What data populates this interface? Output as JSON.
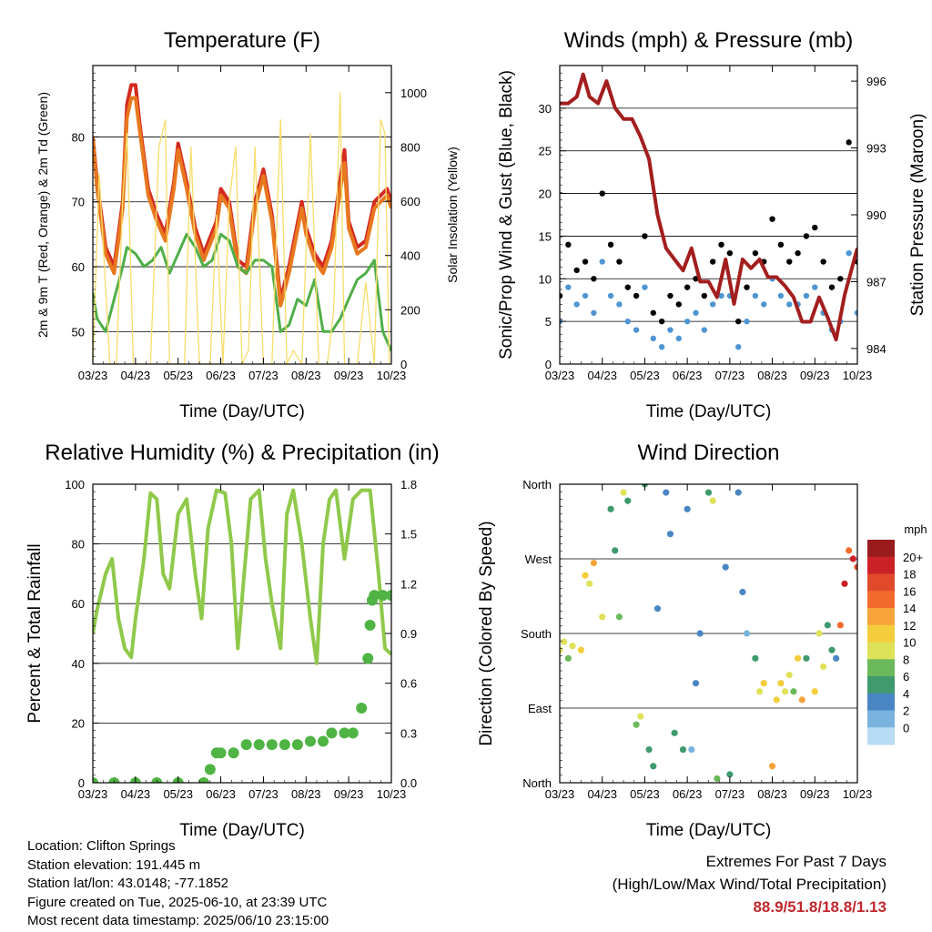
{
  "info": {
    "location": "Location: Clifton Springs",
    "elevation": "Station elevation: 191.445 m",
    "latlon": "Station lat/lon: 43.0148; -77.1852",
    "created": "Figure created on Tue, 2025-06-10, at 23:39 UTC",
    "recent": "Most recent data timestamp: 2025/06/10 23:15:00"
  },
  "extremes": {
    "title": "Extremes For Past 7 Days",
    "subtitle": "(High/Low/Max Wind/Total Precipitation)",
    "values": "88.9/51.8/18.8/1.13"
  },
  "chart_data": [
    {
      "type": "line",
      "title": "Temperature (F)",
      "xlabel": "Time (Day/UTC)",
      "ylabel": "2m & 9m T (Red, Orange) & 2m Td (Green)",
      "y2label": "Solar Insolation (Yellow)",
      "xticks": [
        "03/23",
        "04/23",
        "05/23",
        "06/23",
        "07/23",
        "08/23",
        "09/23",
        "10/23"
      ],
      "xlim": [
        0,
        7
      ],
      "ylim": [
        45,
        91
      ],
      "y2lim": [
        0,
        1100
      ],
      "yticks": [
        50,
        60,
        70,
        80
      ],
      "y2ticks": [
        0,
        200,
        400,
        600,
        800,
        1000
      ],
      "grid": true,
      "series": [
        {
          "color": "#d42a20",
          "x": [
            0,
            0.1,
            0.3,
            0.5,
            0.7,
            0.8,
            0.9,
            1.0,
            1.1,
            1.3,
            1.5,
            1.7,
            1.9,
            2.0,
            2.2,
            2.4,
            2.6,
            2.9,
            3.0,
            3.2,
            3.4,
            3.6,
            3.8,
            4.0,
            4.2,
            4.4,
            4.6,
            4.9,
            5.0,
            5.2,
            5.4,
            5.6,
            5.9,
            6.0,
            6.2,
            6.4,
            6.6,
            6.9,
            7.0
          ],
          "values": [
            80,
            73,
            63,
            60,
            70,
            85,
            88,
            88,
            82,
            72,
            68,
            65,
            73,
            79,
            73,
            66,
            62,
            67,
            72,
            70,
            61,
            60,
            70,
            75,
            68,
            55,
            60,
            70,
            66,
            62,
            60,
            64,
            78,
            67,
            63,
            64,
            70,
            72,
            70
          ]
        },
        {
          "color": "#e8781e",
          "x": [
            0,
            0.1,
            0.3,
            0.5,
            0.7,
            0.8,
            0.9,
            1.0,
            1.1,
            1.3,
            1.5,
            1.7,
            1.9,
            2.0,
            2.2,
            2.4,
            2.6,
            2.9,
            3.0,
            3.2,
            3.4,
            3.6,
            3.8,
            4.0,
            4.2,
            4.4,
            4.6,
            4.9,
            5.0,
            5.2,
            5.4,
            5.6,
            5.9,
            6.0,
            6.2,
            6.4,
            6.6,
            6.9,
            7.0
          ],
          "values": [
            80,
            72,
            62,
            59,
            69,
            83,
            86,
            86,
            81,
            71,
            67,
            64,
            72,
            78,
            72,
            65,
            61,
            66,
            71,
            69,
            60,
            59,
            69,
            74,
            67,
            54,
            59,
            69,
            65,
            61,
            59,
            63,
            76,
            66,
            62,
            63,
            69,
            71,
            69
          ]
        },
        {
          "color": "#4fae48",
          "x": [
            0,
            0.1,
            0.3,
            0.5,
            0.7,
            0.8,
            1.0,
            1.2,
            1.4,
            1.6,
            1.8,
            2.0,
            2.2,
            2.4,
            2.6,
            2.8,
            3.0,
            3.2,
            3.4,
            3.6,
            3.8,
            4.0,
            4.2,
            4.4,
            4.6,
            4.8,
            5.0,
            5.2,
            5.4,
            5.6,
            5.8,
            6.0,
            6.2,
            6.4,
            6.6,
            6.8,
            7.0
          ],
          "values": [
            56,
            52,
            50,
            55,
            60,
            63,
            62,
            60,
            61,
            63,
            59,
            62,
            65,
            63,
            60,
            61,
            65,
            64,
            60,
            59,
            61,
            61,
            60,
            50,
            51,
            55,
            54,
            58,
            50,
            50,
            52,
            55,
            58,
            59,
            61,
            50,
            47
          ]
        },
        {
          "color": "#f7dd6a",
          "x": [
            0,
            0.15,
            0.4,
            0.55,
            0.7,
            0.8,
            0.95,
            1.2,
            1.35,
            1.55,
            1.7,
            1.8,
            2.0,
            2.15,
            2.3,
            2.5,
            2.75,
            2.9,
            3.05,
            3.2,
            3.35,
            3.5,
            3.65,
            3.8,
            4.0,
            4.2,
            4.4,
            4.55,
            4.7,
            4.9,
            5.1,
            5.3,
            5.5,
            5.65,
            5.8,
            5.9,
            6.0,
            6.2,
            6.4,
            6.6,
            6.75,
            6.85,
            6.95,
            7.0
          ],
          "values": [
            0,
            700,
            0,
            0,
            600,
            850,
            0,
            0,
            0,
            800,
            900,
            0,
            0,
            0,
            800,
            0,
            0,
            550,
            0,
            600,
            800,
            0,
            50,
            800,
            0,
            0,
            900,
            0,
            50,
            0,
            850,
            0,
            0,
            200,
            1000,
            0,
            0,
            0,
            300,
            0,
            900,
            850,
            0,
            0
          ],
          "axis": "y2"
        }
      ]
    },
    {
      "type": "line",
      "title": "Winds (mph) & Pressure (mb)",
      "xlabel": "Time (Day/UTC)",
      "ylabel": "Sonic/Prop Wind & Gust (Blue, Black)",
      "y2label": "Station Pressure (Maroon)",
      "xticks": [
        "03/23",
        "04/23",
        "05/23",
        "06/23",
        "07/23",
        "08/23",
        "09/23",
        "10/23"
      ],
      "xlim": [
        0,
        7
      ],
      "ylim": [
        0,
        35
      ],
      "y2lim": [
        983.3,
        996.7
      ],
      "yticks": [
        0,
        5,
        10,
        15,
        20,
        25,
        30
      ],
      "y2ticks": [
        984,
        987,
        990,
        993,
        996
      ],
      "grid": true,
      "series": [
        {
          "color": "#000000",
          "style": "dots",
          "x": [
            0,
            0.2,
            0.4,
            0.6,
            0.8,
            1.0,
            1.2,
            1.4,
            1.6,
            1.8,
            2.0,
            2.2,
            2.4,
            2.6,
            2.8,
            3.0,
            3.2,
            3.4,
            3.6,
            3.8,
            4.0,
            4.2,
            4.4,
            4.6,
            4.8,
            5.0,
            5.2,
            5.4,
            5.6,
            5.8,
            6.0,
            6.2,
            6.4,
            6.6,
            6.8,
            7.0
          ],
          "values": [
            8,
            14,
            11,
            12,
            10,
            20,
            14,
            12,
            9,
            8,
            15,
            6,
            5,
            8,
            7,
            9,
            10,
            8,
            12,
            14,
            13,
            5,
            9,
            13,
            12,
            17,
            14,
            12,
            13,
            15,
            16,
            12,
            9,
            10,
            26,
            12
          ]
        },
        {
          "color": "#4e95d2",
          "style": "dots",
          "x": [
            0,
            0.2,
            0.4,
            0.6,
            0.8,
            1.0,
            1.2,
            1.4,
            1.6,
            1.8,
            2.0,
            2.2,
            2.4,
            2.6,
            2.8,
            3.0,
            3.2,
            3.4,
            3.6,
            3.8,
            4.0,
            4.2,
            4.4,
            4.6,
            4.8,
            5.0,
            5.2,
            5.4,
            5.6,
            5.8,
            6.0,
            6.2,
            6.4,
            6.6,
            6.8,
            7.0
          ],
          "values": [
            5,
            9,
            7,
            8,
            6,
            12,
            8,
            7,
            5,
            4,
            9,
            3,
            2,
            4,
            3,
            5,
            6,
            4,
            7,
            8,
            8,
            2,
            5,
            8,
            7,
            10,
            8,
            7,
            7,
            8,
            9,
            6,
            4,
            5,
            13,
            6
          ]
        },
        {
          "color": "#a31e1e",
          "axis": "y2",
          "x": [
            0,
            0.2,
            0.4,
            0.55,
            0.7,
            0.9,
            1.1,
            1.3,
            1.5,
            1.7,
            1.9,
            2.1,
            2.3,
            2.5,
            2.7,
            2.9,
            3.1,
            3.3,
            3.5,
            3.7,
            3.9,
            4.1,
            4.3,
            4.5,
            4.7,
            4.9,
            5.1,
            5.3,
            5.5,
            5.7,
            5.9,
            6.1,
            6.3,
            6.5,
            6.7,
            6.9,
            7.0
          ],
          "values": [
            995,
            995,
            995.3,
            996.3,
            995.3,
            995,
            996,
            994.8,
            994.3,
            994.3,
            993.5,
            992.5,
            990,
            988.5,
            988,
            987.5,
            988.5,
            987,
            987,
            986.3,
            988,
            986,
            988,
            987.6,
            988,
            987.2,
            987.2,
            986.8,
            986.3,
            985.2,
            985.2,
            986.3,
            985.4,
            984.4,
            986.4,
            987.8,
            988.5
          ]
        }
      ]
    },
    {
      "type": "line",
      "title": "Relative Humidity (%) & Precipitation (in)",
      "xlabel": "Time (Day/UTC)",
      "ylabel": "Percent & Total Rainfall",
      "xticks": [
        "03/23",
        "04/23",
        "05/23",
        "06/23",
        "07/23",
        "08/23",
        "09/23",
        "10/23"
      ],
      "xlim": [
        0,
        7
      ],
      "ylim": [
        0,
        100
      ],
      "y2lim": [
        0,
        1.8
      ],
      "yticks": [
        0,
        20,
        40,
        60,
        80,
        100
      ],
      "y2ticks": [
        "0.0",
        "0.3",
        "0.6",
        "0.9",
        "1.2",
        "1.5",
        "1.8"
      ],
      "grid": true,
      "series": [
        {
          "color": "#8fc94a",
          "x": [
            0,
            0.1,
            0.3,
            0.45,
            0.6,
            0.75,
            0.9,
            1.0,
            1.2,
            1.35,
            1.5,
            1.65,
            1.8,
            2.0,
            2.2,
            2.4,
            2.55,
            2.7,
            2.9,
            3.1,
            3.25,
            3.4,
            3.55,
            3.7,
            3.9,
            4.05,
            4.2,
            4.4,
            4.55,
            4.7,
            4.9,
            5.1,
            5.25,
            5.4,
            5.55,
            5.7,
            5.9,
            6.1,
            6.3,
            6.5,
            6.7,
            6.85,
            7.0
          ],
          "values": [
            50,
            58,
            70,
            75,
            55,
            45,
            42,
            55,
            75,
            97,
            95,
            70,
            65,
            90,
            95,
            70,
            55,
            85,
            98,
            97,
            80,
            45,
            70,
            95,
            98,
            75,
            60,
            45,
            90,
            98,
            80,
            55,
            40,
            80,
            95,
            98,
            75,
            95,
            98,
            98,
            70,
            45,
            43
          ]
        },
        {
          "color": "#4fb443",
          "style": "dots",
          "axis": "y2",
          "x": [
            0,
            0.5,
            1.0,
            1.5,
            2.0,
            2.6,
            2.75,
            2.9,
            3.0,
            3.3,
            3.6,
            3.9,
            4.2,
            4.5,
            4.8,
            5.1,
            5.4,
            5.6,
            5.9,
            6.1,
            6.3,
            6.45,
            6.5,
            6.55,
            6.6,
            6.8,
            7.0
          ],
          "values": [
            0,
            0,
            0,
            0,
            0,
            0,
            0.08,
            0.18,
            0.18,
            0.18,
            0.23,
            0.23,
            0.23,
            0.23,
            0.23,
            0.25,
            0.25,
            0.3,
            0.3,
            0.3,
            0.45,
            0.75,
            0.95,
            1.1,
            1.13,
            1.13,
            1.13
          ]
        }
      ]
    },
    {
      "type": "scatter",
      "title": "Wind Direction",
      "xlabel": "Time (Day/UTC)",
      "ylabel": "Direction (Colored By Speed)",
      "xticks": [
        "03/23",
        "04/23",
        "05/23",
        "06/23",
        "07/23",
        "08/23",
        "09/23",
        "10/23"
      ],
      "xlim": [
        0,
        7
      ],
      "ylim": [
        0,
        360
      ],
      "ytick_labels": [
        "North",
        "East",
        "South",
        "West",
        "North"
      ],
      "legend_title": "mph",
      "legend_labels": [
        "20+",
        "18",
        "16",
        "14",
        "12",
        "10",
        "8",
        "6",
        "4",
        "2",
        "0"
      ],
      "colors": [
        "#9a1b1e",
        "#cb2127",
        "#e04a2b",
        "#f26b2c",
        "#f7a43b",
        "#f3cd3c",
        "#dfe159",
        "#6bb95a",
        "#3f9a6d",
        "#4a86c4",
        "#7ab3de",
        "#b8dcf3"
      ],
      "points": {
        "x": [
          0,
          0.1,
          0.2,
          0.3,
          0.5,
          0.6,
          0.7,
          0.8,
          1.0,
          1.2,
          1.3,
          1.4,
          1.5,
          1.6,
          1.8,
          1.9,
          2.0,
          2.1,
          2.2,
          2.3,
          2.5,
          2.6,
          2.7,
          2.9,
          3.0,
          3.1,
          3.2,
          3.3,
          3.5,
          3.6,
          3.7,
          3.9,
          4.0,
          4.2,
          4.3,
          4.4,
          4.6,
          4.7,
          4.8,
          5.0,
          5.1,
          5.2,
          5.3,
          5.4,
          5.5,
          5.6,
          5.7,
          5.8,
          6.0,
          6.1,
          6.2,
          6.3,
          6.4,
          6.5,
          6.6,
          6.7,
          6.8,
          6.9,
          7.0
        ],
        "direction": [
          160,
          170,
          150,
          165,
          160,
          250,
          240,
          265,
          200,
          330,
          280,
          200,
          350,
          340,
          70,
          80,
          360,
          40,
          20,
          210,
          350,
          300,
          60,
          40,
          330,
          40,
          120,
          180,
          350,
          340,
          5,
          260,
          10,
          350,
          230,
          180,
          150,
          110,
          120,
          20,
          100,
          120,
          110,
          130,
          110,
          150,
          100,
          150,
          110,
          180,
          140,
          190,
          160,
          150,
          190,
          240,
          280,
          270,
          260
        ],
        "speed": [
          9,
          10,
          8,
          9,
          11,
          12,
          10,
          13,
          9,
          6,
          5,
          7,
          9,
          6,
          8,
          10,
          6,
          5,
          5,
          4,
          3,
          4,
          5,
          6,
          3,
          2,
          3,
          4,
          5,
          9,
          7,
          3,
          6,
          3,
          3,
          2,
          5,
          10,
          12,
          13,
          11,
          12,
          10,
          9,
          8,
          11,
          14,
          6,
          12,
          10,
          9,
          6,
          5,
          4,
          16,
          19,
          15,
          20,
          18
        ]
      }
    }
  ]
}
